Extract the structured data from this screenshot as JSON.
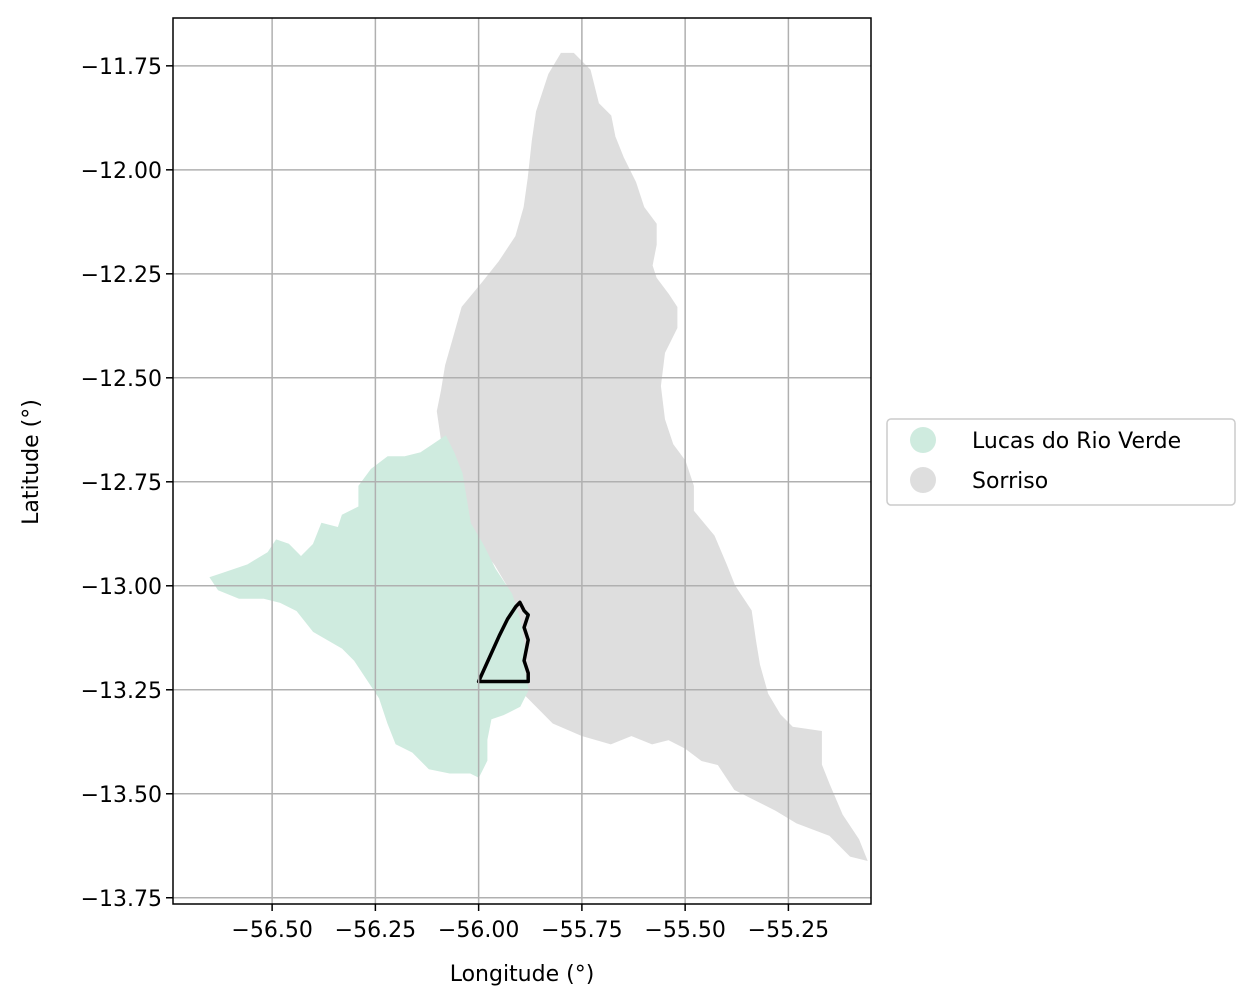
{
  "chart_data": {
    "type": "map",
    "xlabel": "Longitude (°)",
    "ylabel": "Latitude (°)",
    "xlim": [
      -56.74,
      -55.05
    ],
    "ylim": [
      -13.765,
      -11.635
    ],
    "grid": true,
    "xticks": [
      {
        "value": -56.5,
        "label": "−56.50"
      },
      {
        "value": -56.25,
        "label": "−56.25"
      },
      {
        "value": -56.0,
        "label": "−56.00"
      },
      {
        "value": -55.75,
        "label": "−55.75"
      },
      {
        "value": -55.5,
        "label": "−55.50"
      },
      {
        "value": -55.25,
        "label": "−55.25"
      }
    ],
    "yticks": [
      {
        "value": -11.75,
        "label": "−11.75"
      },
      {
        "value": -12.0,
        "label": "−12.00"
      },
      {
        "value": -12.25,
        "label": "−12.25"
      },
      {
        "value": -12.5,
        "label": "−12.50"
      },
      {
        "value": -12.75,
        "label": "−12.75"
      },
      {
        "value": -13.0,
        "label": "−13.00"
      },
      {
        "value": -13.25,
        "label": "−13.25"
      },
      {
        "value": -13.5,
        "label": "−13.50"
      },
      {
        "value": -13.75,
        "label": "−13.75"
      }
    ],
    "legend_position": "right-center",
    "regions": [
      {
        "name": "Sorriso",
        "color": "#dedede",
        "polygon": [
          [
            -55.8,
            -11.72
          ],
          [
            -55.77,
            -11.72
          ],
          [
            -55.73,
            -11.76
          ],
          [
            -55.71,
            -11.84
          ],
          [
            -55.68,
            -11.87
          ],
          [
            -55.67,
            -11.92
          ],
          [
            -55.65,
            -11.97
          ],
          [
            -55.62,
            -12.03
          ],
          [
            -55.6,
            -12.09
          ],
          [
            -55.57,
            -12.13
          ],
          [
            -55.57,
            -12.18
          ],
          [
            -55.58,
            -12.23
          ],
          [
            -55.57,
            -12.26
          ],
          [
            -55.54,
            -12.3
          ],
          [
            -55.52,
            -12.33
          ],
          [
            -55.52,
            -12.38
          ],
          [
            -55.55,
            -12.44
          ],
          [
            -55.56,
            -12.52
          ],
          [
            -55.55,
            -12.6
          ],
          [
            -55.53,
            -12.66
          ],
          [
            -55.5,
            -12.7
          ],
          [
            -55.48,
            -12.76
          ],
          [
            -55.48,
            -12.82
          ],
          [
            -55.43,
            -12.88
          ],
          [
            -55.4,
            -12.95
          ],
          [
            -55.38,
            -13.0
          ],
          [
            -55.34,
            -13.06
          ],
          [
            -55.33,
            -13.13
          ],
          [
            -55.32,
            -13.19
          ],
          [
            -55.3,
            -13.26
          ],
          [
            -55.27,
            -13.31
          ],
          [
            -55.24,
            -13.34
          ],
          [
            -55.17,
            -13.35
          ],
          [
            -55.17,
            -13.43
          ],
          [
            -55.15,
            -13.48
          ],
          [
            -55.12,
            -13.55
          ],
          [
            -55.08,
            -13.61
          ],
          [
            -55.06,
            -13.66
          ],
          [
            -55.1,
            -13.65
          ],
          [
            -55.15,
            -13.6
          ],
          [
            -55.23,
            -13.57
          ],
          [
            -55.28,
            -13.54
          ],
          [
            -55.34,
            -13.51
          ],
          [
            -55.38,
            -13.49
          ],
          [
            -55.4,
            -13.46
          ],
          [
            -55.42,
            -13.43
          ],
          [
            -55.46,
            -13.42
          ],
          [
            -55.5,
            -13.39
          ],
          [
            -55.54,
            -13.37
          ],
          [
            -55.58,
            -13.38
          ],
          [
            -55.63,
            -13.36
          ],
          [
            -55.68,
            -13.38
          ],
          [
            -55.75,
            -13.36
          ],
          [
            -55.82,
            -13.33
          ],
          [
            -55.86,
            -13.29
          ],
          [
            -55.89,
            -13.26
          ],
          [
            -55.91,
            -13.22
          ],
          [
            -55.92,
            -13.16
          ],
          [
            -55.91,
            -13.1
          ],
          [
            -55.92,
            -13.05
          ],
          [
            -55.93,
            -13.0
          ],
          [
            -55.96,
            -12.95
          ],
          [
            -56.0,
            -12.9
          ],
          [
            -56.04,
            -12.84
          ],
          [
            -56.05,
            -12.79
          ],
          [
            -56.05,
            -12.74
          ],
          [
            -56.09,
            -12.65
          ],
          [
            -56.1,
            -12.58
          ],
          [
            -56.09,
            -12.53
          ],
          [
            -56.08,
            -12.47
          ],
          [
            -56.06,
            -12.4
          ],
          [
            -56.04,
            -12.33
          ],
          [
            -55.99,
            -12.27
          ],
          [
            -55.95,
            -12.22
          ],
          [
            -55.91,
            -12.16
          ],
          [
            -55.89,
            -12.09
          ],
          [
            -55.88,
            -12.02
          ],
          [
            -55.87,
            -11.93
          ],
          [
            -55.86,
            -11.86
          ],
          [
            -55.84,
            -11.8
          ],
          [
            -55.83,
            -11.77
          ]
        ]
      },
      {
        "name": "Lucas do Rio Verde",
        "color": "#cfebdf",
        "polygon": [
          [
            -56.65,
            -12.98
          ],
          [
            -56.62,
            -12.97
          ],
          [
            -56.56,
            -12.95
          ],
          [
            -56.51,
            -12.92
          ],
          [
            -56.49,
            -12.89
          ],
          [
            -56.46,
            -12.9
          ],
          [
            -56.43,
            -12.93
          ],
          [
            -56.4,
            -12.9
          ],
          [
            -56.38,
            -12.85
          ],
          [
            -56.34,
            -12.86
          ],
          [
            -56.33,
            -12.83
          ],
          [
            -56.29,
            -12.81
          ],
          [
            -56.29,
            -12.76
          ],
          [
            -56.26,
            -12.72
          ],
          [
            -56.22,
            -12.69
          ],
          [
            -56.18,
            -12.69
          ],
          [
            -56.14,
            -12.68
          ],
          [
            -56.11,
            -12.66
          ],
          [
            -56.08,
            -12.64
          ],
          [
            -56.06,
            -12.68
          ],
          [
            -56.04,
            -12.73
          ],
          [
            -56.03,
            -12.79
          ],
          [
            -56.02,
            -12.85
          ],
          [
            -55.99,
            -12.9
          ],
          [
            -55.96,
            -12.96
          ],
          [
            -55.92,
            -13.02
          ],
          [
            -55.9,
            -13.08
          ],
          [
            -55.89,
            -13.14
          ],
          [
            -55.89,
            -13.2
          ],
          [
            -55.88,
            -13.25
          ],
          [
            -55.9,
            -13.29
          ],
          [
            -55.94,
            -13.31
          ],
          [
            -55.97,
            -13.32
          ],
          [
            -55.98,
            -13.37
          ],
          [
            -55.98,
            -13.42
          ],
          [
            -55.99,
            -13.44
          ],
          [
            -56.0,
            -13.46
          ],
          [
            -56.02,
            -13.45
          ],
          [
            -56.07,
            -13.45
          ],
          [
            -56.12,
            -13.44
          ],
          [
            -56.16,
            -13.4
          ],
          [
            -56.2,
            -13.38
          ],
          [
            -56.22,
            -13.33
          ],
          [
            -56.24,
            -13.27
          ],
          [
            -56.26,
            -13.24
          ],
          [
            -56.3,
            -13.18
          ],
          [
            -56.33,
            -13.15
          ],
          [
            -56.4,
            -13.11
          ],
          [
            -56.44,
            -13.06
          ],
          [
            -56.48,
            -13.04
          ],
          [
            -56.52,
            -13.03
          ],
          [
            -56.58,
            -13.03
          ],
          [
            -56.63,
            -13.01
          ]
        ]
      }
    ],
    "outline": {
      "color": "#000000",
      "polygon": [
        [
          -56.0,
          -13.23
        ],
        [
          -55.95,
          -13.12
        ],
        [
          -55.93,
          -13.08
        ],
        [
          -55.91,
          -13.05
        ],
        [
          -55.9,
          -13.04
        ],
        [
          -55.89,
          -13.06
        ],
        [
          -55.88,
          -13.07
        ],
        [
          -55.89,
          -13.1
        ],
        [
          -55.88,
          -13.13
        ],
        [
          -55.89,
          -13.18
        ],
        [
          -55.88,
          -13.21
        ],
        [
          -55.88,
          -13.23
        ]
      ]
    }
  },
  "legend": {
    "items": [
      {
        "label": "Lucas do Rio Verde",
        "color": "#cfebdf"
      },
      {
        "label": "Sorriso",
        "color": "#dedede"
      }
    ]
  }
}
